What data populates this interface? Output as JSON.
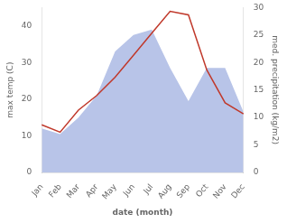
{
  "chart_data": {
    "type": "line",
    "categories": [
      "Jan",
      "Feb",
      "Mar",
      "Apr",
      "May",
      "Jun",
      "Jul",
      "Aug",
      "Sep",
      "Oct",
      "Nov",
      "Dec"
    ],
    "xlabel": "date (month)",
    "ylabel": "max temp (C)",
    "y2label": "med. precipitation (kg/m2)",
    "series": [
      {
        "type": "area",
        "color": "#b8c4e8",
        "axis": "y2",
        "values": [
          8,
          7,
          10,
          14,
          22,
          25,
          26,
          19,
          13,
          19,
          19,
          11
        ]
      },
      {
        "type": "line",
        "color": "#c0392b",
        "values": [
          13,
          11,
          17,
          21,
          26,
          32,
          38,
          44,
          43,
          28,
          19,
          16
        ]
      }
    ],
    "ylim": [
      0,
      45
    ],
    "yticks": [
      0,
      10,
      20,
      30,
      40
    ],
    "y2lim": [
      0,
      30
    ],
    "y2ticks": [
      0,
      5,
      10,
      15,
      20,
      25,
      30
    ],
    "grid": false
  }
}
